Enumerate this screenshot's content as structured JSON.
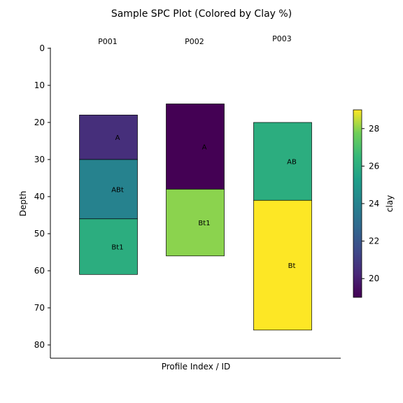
{
  "chart_data": {
    "type": "bar",
    "title": "Sample SPC Plot (Colored by Clay %)",
    "xlabel": "Profile Index / ID",
    "ylabel": "Depth",
    "ylim": [
      0,
      80
    ],
    "y_inverted": true,
    "yticks": [
      "0",
      "10",
      "20",
      "30",
      "40",
      "50",
      "60",
      "70",
      "80"
    ],
    "grid": false,
    "profiles": [
      {
        "id": "P001",
        "horizons": [
          {
            "name": "A",
            "top": 18,
            "bottom": 30,
            "clay": 20.5
          },
          {
            "name": "ABt",
            "top": 30,
            "bottom": 46,
            "clay": 24.0
          },
          {
            "name": "Bt1",
            "top": 46,
            "bottom": 61,
            "clay": 26.0
          }
        ]
      },
      {
        "id": "P002",
        "horizons": [
          {
            "name": "A",
            "top": 15,
            "bottom": 38,
            "clay": 19.0
          },
          {
            "name": "Bt1",
            "top": 38,
            "bottom": 56,
            "clay": 28.0
          }
        ]
      },
      {
        "id": "P003",
        "horizons": [
          {
            "name": "AB",
            "top": 20,
            "bottom": 41,
            "clay": 26.0
          },
          {
            "name": "Bt",
            "top": 41,
            "bottom": 76,
            "clay": 29.0
          }
        ]
      }
    ],
    "colorbar": {
      "label": "clay",
      "colormap": "viridis",
      "range": [
        19,
        29
      ],
      "ticks": [
        "20",
        "22",
        "24",
        "26",
        "28"
      ]
    }
  }
}
